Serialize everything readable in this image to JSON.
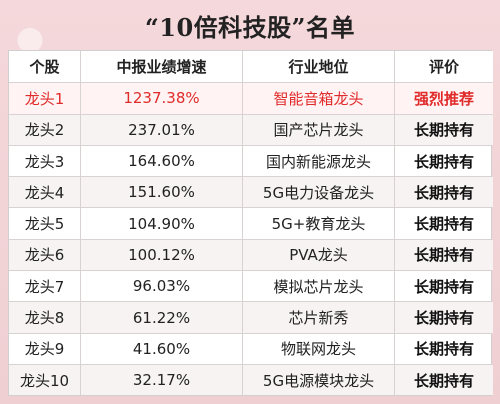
{
  "title": "“10倍科技股”名单",
  "table": {
    "headers": [
      "个股",
      "中报业绩增速",
      "行业地位",
      "评价"
    ],
    "rows": [
      [
        "龙头1",
        "1237.38%",
        "智能音箱龙头",
        "强烈推荐"
      ],
      [
        "龙头2",
        "237.01%",
        "国产芯片龙头",
        "长期持有"
      ],
      [
        "龙头3",
        "164.60%",
        "国内新能源龙头",
        "长期持有"
      ],
      [
        "龙头4",
        "151.60%",
        "5G电力设备龙头",
        "长期持有"
      ],
      [
        "龙头5",
        "104.90%",
        "5G+教育龙头",
        "长期持有"
      ],
      [
        "龙头6",
        "100.12%",
        "PVA龙头",
        "长期持有"
      ],
      [
        "龙头7",
        "96.03%",
        "模拟芯片龙头",
        "长期持有"
      ],
      [
        "龙头8",
        "61.22%",
        "芯片新秀",
        "长期持有"
      ],
      [
        "龙头9",
        "41.60%",
        "物联网龙头",
        "长期持有"
      ],
      [
        "龙头10",
        "32.17%",
        "5G电源模块龙头",
        "长期持有"
      ]
    ]
  }
}
